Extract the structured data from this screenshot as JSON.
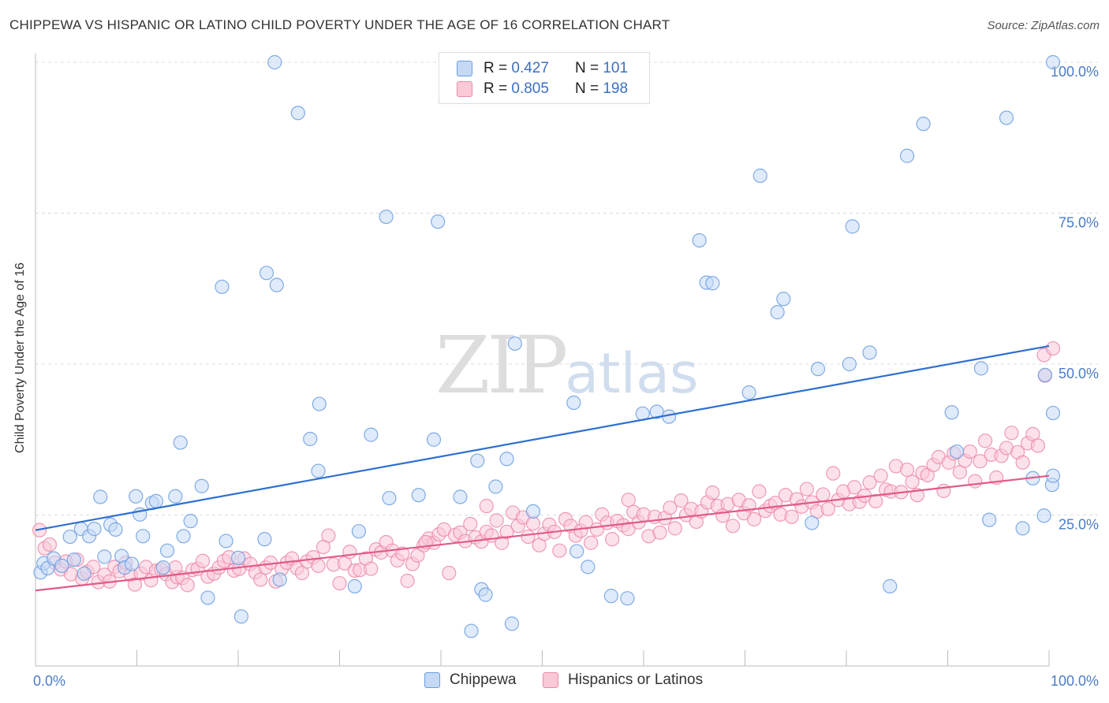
{
  "title": "CHIPPEWA VS HISPANIC OR LATINO CHILD POVERTY UNDER THE AGE OF 16 CORRELATION CHART",
  "source": "Source: ZipAtlas.com",
  "watermark": {
    "zip": "ZIP",
    "atlas": "atlas"
  },
  "legend": {
    "rows": [
      {
        "r_label": "R =",
        "r_value": "0.427",
        "n_label": "N =",
        "n_value": "101",
        "color": "#6b9de0",
        "fill": "#c5d9f5"
      },
      {
        "r_label": "R =",
        "r_value": "0.805",
        "n_label": "N =",
        "n_value": "198",
        "color": "#ec8aa8",
        "fill": "#f9c9d8"
      }
    ]
  },
  "bottom_legend": [
    "Chippewa",
    "Hispanics or Latinos"
  ],
  "chart_data": {
    "type": "scatter",
    "title": "CHIPPEWA VS HISPANIC OR LATINO CHILD POVERTY UNDER THE AGE OF 16 CORRELATION CHART",
    "xlabel": "",
    "ylabel": "Child Poverty Under the Age of 16",
    "xlim": [
      0,
      100
    ],
    "ylim": [
      0,
      100
    ],
    "x_tick_labels": [
      "0.0%",
      "100.0%"
    ],
    "y_tick_labels": [
      "100.0%",
      "75.0%",
      "50.0%",
      "25.0%"
    ],
    "y_ticks": [
      100,
      75,
      50,
      25
    ],
    "grid": true,
    "legend_position": "top-center",
    "series": [
      {
        "name": "Chippewa",
        "color": "#6b9de0",
        "fill": "#c5d9f5",
        "trend": {
          "x": [
            0,
            100
          ],
          "y": [
            22.5,
            53.0
          ],
          "color": "#2f6fd0"
        },
        "points": [
          [
            0.5,
            15.5
          ],
          [
            0.8,
            17.0
          ],
          [
            1.2,
            16.2
          ],
          [
            1.8,
            17.8
          ],
          [
            2.6,
            16.6
          ],
          [
            3.4,
            21.4
          ],
          [
            3.8,
            17.6
          ],
          [
            4.5,
            22.7
          ],
          [
            4.8,
            15.3
          ],
          [
            5.3,
            21.5
          ],
          [
            5.8,
            22.7
          ],
          [
            6.4,
            28.0
          ],
          [
            6.8,
            18.1
          ],
          [
            7.4,
            23.4
          ],
          [
            7.9,
            22.6
          ],
          [
            8.5,
            18.2
          ],
          [
            8.8,
            16.3
          ],
          [
            9.5,
            16.9
          ],
          [
            9.9,
            28.1
          ],
          [
            10.3,
            25.1
          ],
          [
            10.6,
            21.5
          ],
          [
            11.5,
            27.0
          ],
          [
            11.9,
            27.3
          ],
          [
            12.6,
            16.3
          ],
          [
            13.0,
            19.1
          ],
          [
            13.8,
            28.1
          ],
          [
            14.3,
            37.0
          ],
          [
            14.6,
            21.5
          ],
          [
            15.3,
            24.0
          ],
          [
            16.4,
            29.8
          ],
          [
            17.0,
            11.3
          ],
          [
            18.4,
            62.8
          ],
          [
            18.8,
            20.7
          ],
          [
            20.0,
            17.9
          ],
          [
            20.3,
            8.2
          ],
          [
            22.6,
            21.0
          ],
          [
            22.8,
            65.1
          ],
          [
            23.6,
            100.0
          ],
          [
            23.8,
            63.1
          ],
          [
            24.1,
            14.3
          ],
          [
            25.9,
            91.6
          ],
          [
            27.1,
            37.6
          ],
          [
            27.9,
            32.3
          ],
          [
            28.0,
            43.4
          ],
          [
            31.5,
            13.2
          ],
          [
            31.9,
            22.3
          ],
          [
            33.1,
            38.3
          ],
          [
            34.6,
            74.4
          ],
          [
            34.9,
            27.8
          ],
          [
            37.8,
            28.3
          ],
          [
            39.3,
            37.5
          ],
          [
            39.7,
            73.6
          ],
          [
            41.9,
            28.0
          ],
          [
            43.0,
            5.8
          ],
          [
            43.6,
            34.0
          ],
          [
            44.0,
            12.7
          ],
          [
            44.4,
            11.8
          ],
          [
            45.4,
            29.7
          ],
          [
            46.5,
            34.3
          ],
          [
            47.0,
            7.0
          ],
          [
            47.3,
            53.4
          ],
          [
            49.1,
            25.6
          ],
          [
            53.1,
            43.6
          ],
          [
            53.4,
            19.0
          ],
          [
            54.5,
            16.4
          ],
          [
            56.8,
            11.6
          ],
          [
            58.4,
            11.2
          ],
          [
            59.9,
            41.8
          ],
          [
            61.3,
            42.1
          ],
          [
            62.5,
            41.3
          ],
          [
            65.5,
            70.5
          ],
          [
            66.2,
            63.5
          ],
          [
            66.8,
            63.4
          ],
          [
            70.4,
            45.3
          ],
          [
            71.5,
            81.2
          ],
          [
            73.2,
            58.6
          ],
          [
            73.8,
            60.8
          ],
          [
            76.6,
            23.7
          ],
          [
            77.2,
            49.2
          ],
          [
            80.3,
            50.0
          ],
          [
            80.6,
            72.8
          ],
          [
            82.3,
            51.9
          ],
          [
            84.3,
            13.2
          ],
          [
            86.0,
            84.5
          ],
          [
            87.6,
            89.8
          ],
          [
            90.4,
            42.0
          ],
          [
            90.9,
            35.5
          ],
          [
            93.3,
            49.3
          ],
          [
            94.1,
            24.2
          ],
          [
            95.8,
            90.8
          ],
          [
            97.4,
            22.8
          ],
          [
            98.4,
            31.1
          ],
          [
            99.5,
            24.9
          ],
          [
            99.6,
            48.2
          ],
          [
            100.3,
            30.0
          ],
          [
            101.2,
            41.9
          ],
          [
            102.2,
            31.5
          ],
          [
            103.4,
            100.0
          ]
        ]
      },
      {
        "name": "Hispanics or Latinos",
        "color": "#ec8aa8",
        "fill": "#f9c9d8",
        "trend": {
          "x": [
            0,
            100
          ],
          "y": [
            12.5,
            31.5
          ],
          "color": "#e05a88"
        },
        "points": [
          [
            0.4,
            22.5
          ],
          [
            0.9,
            19.5
          ],
          [
            1.4,
            20.1
          ],
          [
            1.9,
            17.1
          ],
          [
            2.5,
            16.0
          ],
          [
            3.0,
            17.3
          ],
          [
            3.5,
            15.2
          ],
          [
            4.1,
            17.6
          ],
          [
            4.6,
            14.5
          ],
          [
            5.1,
            15.6
          ],
          [
            5.7,
            16.4
          ],
          [
            6.2,
            13.9
          ],
          [
            6.8,
            15.1
          ],
          [
            7.3,
            14.0
          ],
          [
            7.8,
            16.4
          ],
          [
            8.3,
            15.7
          ],
          [
            8.9,
            17.1
          ],
          [
            9.4,
            15.1
          ],
          [
            9.8,
            13.5
          ],
          [
            10.4,
            15.3
          ],
          [
            10.9,
            16.4
          ],
          [
            11.4,
            14.2
          ],
          [
            11.9,
            15.8
          ],
          [
            12.4,
            16.0
          ],
          [
            12.9,
            15.2
          ],
          [
            13.5,
            13.9
          ],
          [
            14.0,
            14.7
          ],
          [
            14.5,
            14.6
          ],
          [
            15.0,
            13.4
          ],
          [
            15.5,
            15.9
          ],
          [
            16.0,
            16.1
          ],
          [
            16.5,
            17.4
          ],
          [
            17.0,
            14.8
          ],
          [
            17.6,
            15.3
          ],
          [
            18.1,
            16.3
          ],
          [
            18.6,
            17.4
          ],
          [
            19.1,
            18.0
          ],
          [
            19.6,
            15.8
          ],
          [
            20.1,
            16.1
          ],
          [
            20.6,
            17.8
          ],
          [
            21.2,
            16.9
          ],
          [
            21.7,
            15.5
          ],
          [
            22.2,
            14.3
          ],
          [
            22.7,
            16.3
          ],
          [
            23.2,
            17.1
          ],
          [
            23.7,
            14.0
          ],
          [
            24.3,
            16.1
          ],
          [
            24.8,
            17.1
          ],
          [
            25.3,
            17.8
          ],
          [
            25.8,
            16.2
          ],
          [
            26.3,
            15.4
          ],
          [
            26.8,
            17.3
          ],
          [
            27.4,
            18.0
          ],
          [
            27.9,
            16.6
          ],
          [
            28.4,
            19.7
          ],
          [
            28.9,
            21.6
          ],
          [
            29.4,
            16.8
          ],
          [
            30.0,
            13.7
          ],
          [
            30.5,
            17.0
          ],
          [
            31.0,
            18.9
          ],
          [
            31.5,
            15.8
          ],
          [
            32.0,
            15.9
          ],
          [
            32.6,
            17.8
          ],
          [
            33.1,
            16.1
          ],
          [
            33.6,
            19.3
          ],
          [
            34.1,
            18.8
          ],
          [
            34.6,
            20.5
          ],
          [
            35.2,
            19.1
          ],
          [
            35.7,
            17.5
          ],
          [
            36.2,
            18.6
          ],
          [
            36.7,
            14.1
          ],
          [
            37.2,
            16.9
          ],
          [
            37.7,
            18.3
          ],
          [
            38.3,
            20.0
          ],
          [
            38.8,
            21.1
          ],
          [
            39.3,
            20.4
          ],
          [
            39.8,
            21.8
          ],
          [
            40.3,
            22.6
          ],
          [
            40.8,
            15.4
          ],
          [
            41.4,
            21.7
          ],
          [
            41.9,
            22.1
          ],
          [
            42.4,
            20.7
          ],
          [
            42.9,
            23.5
          ],
          [
            43.4,
            21.3
          ],
          [
            44.0,
            20.6
          ],
          [
            44.5,
            22.2
          ],
          [
            45.0,
            21.6
          ],
          [
            45.5,
            24.1
          ],
          [
            46.0,
            20.4
          ],
          [
            46.5,
            22.2
          ],
          [
            47.1,
            25.4
          ],
          [
            47.6,
            23.2
          ],
          [
            48.1,
            24.6
          ],
          [
            48.6,
            21.4
          ],
          [
            49.1,
            23.6
          ],
          [
            49.7,
            20.0
          ],
          [
            50.2,
            21.9
          ],
          [
            50.7,
            23.4
          ],
          [
            51.2,
            22.2
          ],
          [
            51.7,
            19.1
          ],
          [
            52.3,
            24.3
          ],
          [
            52.8,
            23.2
          ],
          [
            53.3,
            21.6
          ],
          [
            53.8,
            22.4
          ],
          [
            54.3,
            23.8
          ],
          [
            54.8,
            20.4
          ],
          [
            55.4,
            22.6
          ],
          [
            55.9,
            25.1
          ],
          [
            56.4,
            23.7
          ],
          [
            56.9,
            21.0
          ],
          [
            57.4,
            24.0
          ],
          [
            58.0,
            23.3
          ],
          [
            58.5,
            22.7
          ],
          [
            59.0,
            25.5
          ],
          [
            59.5,
            23.8
          ],
          [
            60.0,
            25.1
          ],
          [
            60.5,
            21.5
          ],
          [
            61.1,
            24.7
          ],
          [
            61.6,
            22.1
          ],
          [
            62.1,
            24.5
          ],
          [
            62.6,
            26.2
          ],
          [
            63.1,
            22.8
          ],
          [
            63.7,
            27.4
          ],
          [
            64.2,
            25.0
          ],
          [
            64.7,
            26.0
          ],
          [
            65.2,
            23.9
          ],
          [
            65.7,
            25.6
          ],
          [
            66.3,
            27.1
          ],
          [
            66.8,
            28.7
          ],
          [
            67.3,
            26.5
          ],
          [
            67.8,
            24.9
          ],
          [
            68.3,
            26.8
          ],
          [
            68.8,
            23.2
          ],
          [
            69.4,
            27.5
          ],
          [
            69.9,
            25.3
          ],
          [
            70.4,
            26.6
          ],
          [
            70.9,
            24.3
          ],
          [
            71.4,
            28.9
          ],
          [
            72.0,
            25.7
          ],
          [
            72.5,
            26.5
          ],
          [
            73.0,
            27.0
          ],
          [
            73.5,
            25.1
          ],
          [
            74.0,
            28.3
          ],
          [
            74.6,
            24.7
          ],
          [
            75.1,
            27.6
          ],
          [
            75.6,
            26.4
          ],
          [
            76.1,
            29.3
          ],
          [
            76.6,
            27.1
          ],
          [
            77.1,
            25.6
          ],
          [
            77.7,
            28.4
          ],
          [
            78.2,
            26.0
          ],
          [
            78.7,
            31.9
          ],
          [
            79.2,
            27.5
          ],
          [
            79.7,
            28.9
          ],
          [
            80.3,
            26.8
          ],
          [
            80.8,
            29.6
          ],
          [
            81.3,
            27.2
          ],
          [
            81.8,
            28.2
          ],
          [
            82.3,
            30.4
          ],
          [
            82.9,
            27.3
          ],
          [
            83.4,
            31.5
          ],
          [
            83.9,
            29.2
          ],
          [
            84.4,
            28.9
          ],
          [
            84.9,
            33.1
          ],
          [
            85.4,
            28.8
          ],
          [
            86.0,
            32.5
          ],
          [
            86.5,
            30.5
          ],
          [
            87.0,
            28.3
          ],
          [
            87.5,
            32.0
          ],
          [
            88.0,
            31.6
          ],
          [
            88.6,
            33.3
          ],
          [
            89.1,
            34.6
          ],
          [
            89.6,
            29.0
          ],
          [
            90.1,
            33.7
          ],
          [
            90.6,
            35.2
          ],
          [
            91.2,
            32.1
          ],
          [
            91.7,
            34.0
          ],
          [
            92.2,
            35.5
          ],
          [
            92.7,
            30.6
          ],
          [
            93.2,
            33.9
          ],
          [
            93.7,
            37.3
          ],
          [
            94.3,
            35.0
          ],
          [
            94.8,
            31.2
          ],
          [
            95.3,
            34.8
          ],
          [
            95.8,
            36.1
          ],
          [
            96.3,
            38.6
          ],
          [
            96.9,
            35.4
          ],
          [
            97.4,
            33.7
          ],
          [
            97.9,
            36.9
          ],
          [
            98.4,
            38.4
          ],
          [
            98.9,
            36.5
          ],
          [
            99.5,
            51.5
          ],
          [
            99.6,
            48.1
          ],
          [
            100.5,
            52.6
          ],
          [
            13.8,
            16.3
          ],
          [
            44.5,
            26.5
          ],
          [
            38.5,
            20.5
          ],
          [
            58.5,
            27.5
          ]
        ]
      }
    ]
  }
}
